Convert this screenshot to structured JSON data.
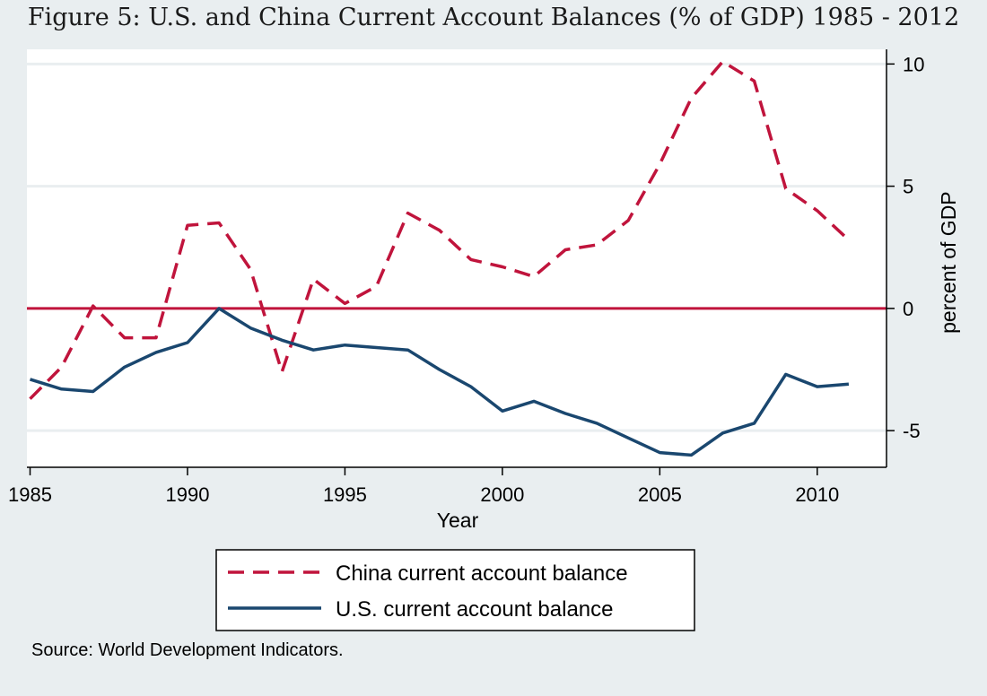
{
  "figure": {
    "title": "Figure 5: U.S. and China Current Account Balances (% of GDP) 1985 - 2012",
    "source": "Source: World Development Indicators."
  },
  "colors": {
    "china": "#c0143c",
    "us": "#1a476f",
    "zero_line": "#c0143c",
    "background": "#e9eef0",
    "plot_background": "#ffffff",
    "grid": "#e9eef0"
  },
  "chart_data": {
    "type": "line",
    "xlabel": "Year",
    "ylabel": "percent of GDP",
    "xlim": [
      1984.9,
      2012.2
    ],
    "ylim": [
      -6.5,
      10.6
    ],
    "x_ticks": [
      1985,
      1990,
      1995,
      2000,
      2005,
      2010
    ],
    "y_ticks": [
      -5,
      0,
      5,
      10
    ],
    "y_axis_side": "right",
    "grid": true,
    "reference_line": 0,
    "legend_position": "bottom",
    "x": [
      1985,
      1986,
      1987,
      1988,
      1989,
      1990,
      1991,
      1992,
      1993,
      1994,
      1995,
      1996,
      1997,
      1998,
      1999,
      2000,
      2001,
      2002,
      2003,
      2004,
      2005,
      2006,
      2007,
      2008,
      2009,
      2010,
      2011
    ],
    "series": [
      {
        "name": "China current account balance",
        "style": "dashed",
        "values": [
          -3.7,
          -2.4,
          0.1,
          -1.2,
          -1.2,
          3.4,
          3.5,
          1.6,
          -2.6,
          1.2,
          0.2,
          0.9,
          3.9,
          3.2,
          2.0,
          1.7,
          1.3,
          2.4,
          2.6,
          3.6,
          5.9,
          8.6,
          10.1,
          9.3,
          4.9,
          4.0,
          2.8
        ]
      },
      {
        "name": "U.S. current account balance",
        "style": "solid",
        "values": [
          -2.9,
          -3.3,
          -3.4,
          -2.4,
          -1.8,
          -1.4,
          0.0,
          -0.8,
          -1.3,
          -1.7,
          -1.5,
          -1.6,
          -1.7,
          -2.5,
          -3.2,
          -4.2,
          -3.8,
          -4.3,
          -4.7,
          -5.3,
          -5.9,
          -6.0,
          -5.1,
          -4.7,
          -2.7,
          -3.2,
          -3.1
        ]
      }
    ]
  }
}
